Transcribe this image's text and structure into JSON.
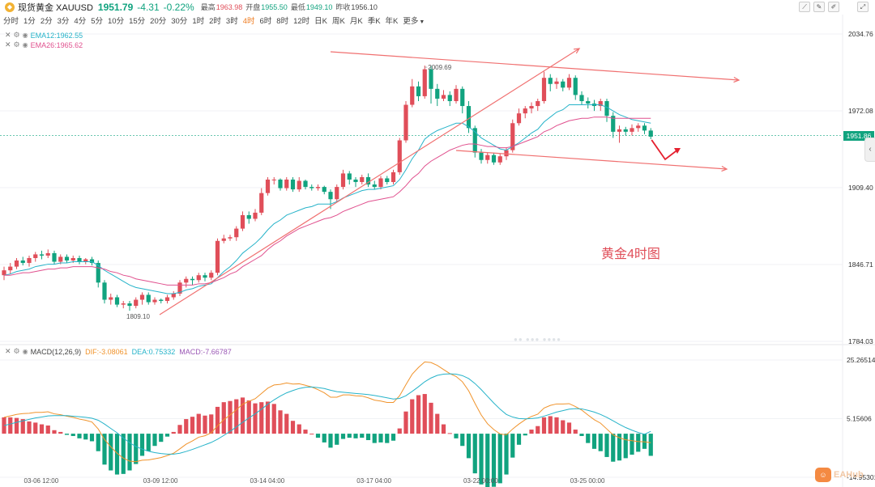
{
  "header": {
    "title": "现货黄金 XAUUSD",
    "price": "1951.79",
    "change": "-4.31",
    "change_pct": "-0.22%",
    "high_label": "最高",
    "high": "1963.98",
    "open_label": "开盘",
    "open": "1955.50",
    "low_label": "最低",
    "low": "1949.10",
    "prev_close_label": "昨收",
    "prev_close": "1956.10"
  },
  "toolbar_icons": [
    "chart-line-icon",
    "pencil-icon",
    "pencil-icon",
    "fullscreen-icon"
  ],
  "periods": [
    "分时",
    "1分",
    "2分",
    "3分",
    "4分",
    "5分",
    "10分",
    "15分",
    "20分",
    "30分",
    "1时",
    "2时",
    "3时",
    "4时",
    "6时",
    "8时",
    "12时",
    "日K",
    "周K",
    "月K",
    "季K",
    "年K",
    "更多"
  ],
  "active_period": "4时",
  "ema_legend": {
    "ema12": "EMA12:1962.55",
    "ema26": "EMA26:1965.62",
    "ema12_color": "#26b3c9",
    "ema26_color": "#e0508e"
  },
  "macd_legend": {
    "name": "MACD(12,26,9)",
    "dif": "DIF:-3.08061",
    "dea": "DEA:0.75332",
    "macd": "MACD:-7.66787",
    "dif_color": "#f0932b",
    "dea_color": "#26b3c9",
    "macd_color": "#9b59b6"
  },
  "annotation": "黄金4时图",
  "current_price_tag": "1951.86",
  "watermark": "EAHub",
  "colors": {
    "up": "#e04e59",
    "down": "#11a37f",
    "channel": "#f07070"
  },
  "chart_data": {
    "type": "candlestick",
    "y_ticks": [
      "2034.76",
      "1972.08",
      "1909.40",
      "1846.71",
      "1784.03"
    ],
    "y_range": [
      1784.03,
      2034.76
    ],
    "x_ticks": [
      "03-06 12:00",
      "03-09 12:00",
      "03-14 04:00",
      "03-17 04:00",
      "03-22 00:00",
      "03-25 00:00"
    ],
    "price_labels": {
      "high": "2009.69",
      "low": "1809.10"
    },
    "candles": [
      [
        1838,
        1842,
        1834,
        1845
      ],
      [
        1842,
        1845,
        1839,
        1848
      ],
      [
        1845,
        1850,
        1843,
        1852
      ],
      [
        1850,
        1848,
        1846,
        1853
      ],
      [
        1848,
        1852,
        1845,
        1854
      ],
      [
        1852,
        1855,
        1849,
        1857
      ],
      [
        1855,
        1854,
        1851,
        1858
      ],
      [
        1854,
        1856,
        1852,
        1859
      ],
      [
        1856,
        1849,
        1847,
        1858
      ],
      [
        1849,
        1853,
        1847,
        1855
      ],
      [
        1853,
        1850,
        1848,
        1855
      ],
      [
        1850,
        1852,
        1848,
        1854
      ],
      [
        1852,
        1849,
        1847,
        1854
      ],
      [
        1849,
        1851,
        1847,
        1852
      ],
      [
        1851,
        1848,
        1846,
        1853
      ],
      [
        1848,
        1832,
        1828,
        1850
      ],
      [
        1832,
        1818,
        1815,
        1834
      ],
      [
        1818,
        1820,
        1814,
        1823
      ],
      [
        1820,
        1814,
        1812,
        1822
      ],
      [
        1814,
        1815,
        1811,
        1817
      ],
      [
        1815,
        1813,
        1809,
        1817
      ],
      [
        1813,
        1818,
        1811,
        1820
      ],
      [
        1818,
        1822,
        1814,
        1824
      ],
      [
        1822,
        1816,
        1814,
        1824
      ],
      [
        1816,
        1818,
        1814,
        1820
      ],
      [
        1818,
        1817,
        1815,
        1819
      ],
      [
        1817,
        1820,
        1815,
        1822
      ],
      [
        1820,
        1823,
        1818,
        1825
      ],
      [
        1823,
        1832,
        1821,
        1834
      ],
      [
        1832,
        1835,
        1828,
        1837
      ],
      [
        1835,
        1834,
        1830,
        1837
      ],
      [
        1834,
        1838,
        1832,
        1840
      ],
      [
        1838,
        1836,
        1833,
        1840
      ],
      [
        1836,
        1840,
        1834,
        1842
      ],
      [
        1840,
        1866,
        1838,
        1868
      ],
      [
        1866,
        1868,
        1864,
        1871
      ],
      [
        1868,
        1869,
        1866,
        1871
      ],
      [
        1869,
        1876,
        1866,
        1878
      ],
      [
        1876,
        1887,
        1874,
        1890
      ],
      [
        1887,
        1884,
        1880,
        1890
      ],
      [
        1884,
        1889,
        1882,
        1892
      ],
      [
        1889,
        1905,
        1887,
        1909
      ],
      [
        1905,
        1916,
        1903,
        1918
      ],
      [
        1916,
        1916,
        1912,
        1918
      ],
      [
        1916,
        1909,
        1907,
        1917
      ],
      [
        1909,
        1916,
        1907,
        1918
      ],
      [
        1916,
        1908,
        1906,
        1918
      ],
      [
        1908,
        1915,
        1906,
        1918
      ],
      [
        1915,
        1910,
        1908,
        1916
      ],
      [
        1910,
        1909,
        1907,
        1912
      ],
      [
        1909,
        1910,
        1907,
        1912
      ],
      [
        1910,
        1906,
        1904,
        1911
      ],
      [
        1906,
        1900,
        1892,
        1908
      ],
      [
        1900,
        1910,
        1898,
        1912
      ],
      [
        1910,
        1921,
        1908,
        1924
      ],
      [
        1921,
        1916,
        1912,
        1923
      ],
      [
        1916,
        1914,
        1910,
        1918
      ],
      [
        1914,
        1918,
        1912,
        1920
      ],
      [
        1918,
        1912,
        1910,
        1921
      ],
      [
        1912,
        1910,
        1908,
        1915
      ],
      [
        1910,
        1917,
        1908,
        1919
      ],
      [
        1917,
        1914,
        1912,
        1919
      ],
      [
        1914,
        1922,
        1912,
        1924
      ],
      [
        1922,
        1948,
        1920,
        1950
      ],
      [
        1948,
        1977,
        1946,
        1980
      ],
      [
        1977,
        1992,
        1975,
        1998
      ],
      [
        1992,
        1984,
        1980,
        1996
      ],
      [
        1984,
        2006,
        1982,
        2009
      ],
      [
        2006,
        1990,
        1978,
        2009
      ],
      [
        1990,
        1982,
        1976,
        1994
      ],
      [
        1982,
        1985,
        1980,
        1989
      ],
      [
        1985,
        1980,
        1976,
        1988
      ],
      [
        1980,
        1990,
        1978,
        1993
      ],
      [
        1990,
        1976,
        1970,
        1992
      ],
      [
        1976,
        1958,
        1954,
        1980
      ],
      [
        1958,
        1938,
        1934,
        1960
      ],
      [
        1938,
        1932,
        1929,
        1941
      ],
      [
        1932,
        1936,
        1929,
        1938
      ],
      [
        1936,
        1930,
        1928,
        1938
      ],
      [
        1930,
        1935,
        1928,
        1937
      ],
      [
        1935,
        1940,
        1932,
        1942
      ],
      [
        1940,
        1962,
        1938,
        1965
      ],
      [
        1962,
        1970,
        1960,
        1974
      ],
      [
        1970,
        1974,
        1966,
        1976
      ],
      [
        1974,
        1976,
        1970,
        1979
      ],
      [
        1976,
        1980,
        1972,
        1982
      ],
      [
        1980,
        1999,
        1978,
        2004
      ],
      [
        1999,
        1994,
        1988,
        2002
      ],
      [
        1994,
        1996,
        1990,
        1999
      ],
      [
        1996,
        1991,
        1988,
        1998
      ],
      [
        1991,
        1999,
        1989,
        2002
      ],
      [
        1999,
        1985,
        1981,
        2001
      ],
      [
        1985,
        1980,
        1977,
        1988
      ],
      [
        1980,
        1978,
        1974,
        1983
      ],
      [
        1978,
        1976,
        1972,
        1981
      ],
      [
        1976,
        1980,
        1972,
        1982
      ],
      [
        1980,
        1968,
        1963,
        1982
      ],
      [
        1968,
        1955,
        1950,
        1971
      ],
      [
        1955,
        1957,
        1946,
        1960
      ],
      [
        1957,
        1955,
        1952,
        1959
      ],
      [
        1955,
        1958,
        1952,
        1961
      ],
      [
        1958,
        1960,
        1955,
        1962
      ],
      [
        1960,
        1956,
        1953,
        1962
      ],
      [
        1956,
        1951,
        1949,
        1958
      ]
    ],
    "ema12": [
      1838,
      1839,
      1841,
      1842,
      1843,
      1845,
      1846,
      1847,
      1847,
      1848,
      1848,
      1849,
      1849,
      1849,
      1849,
      1846,
      1842,
      1839,
      1836,
      1833,
      1830,
      1828,
      1827,
      1826,
      1825,
      1824,
      1823,
      1823,
      1824,
      1826,
      1827,
      1829,
      1830,
      1831,
      1836,
      1841,
      1845,
      1850,
      1856,
      1860,
      1864,
      1869,
      1875,
      1880,
      1883,
      1887,
      1889,
      1891,
      1893,
      1894,
      1896,
      1896,
      1896,
      1898,
      1901,
      1903,
      1905,
      1907,
      1908,
      1908,
      1909,
      1910,
      1911,
      1916,
      1924,
      1933,
      1940,
      1949,
      1953,
      1956,
      1958,
      1960,
      1962,
      1962,
      1959,
      1955,
      1950,
      1947,
      1944,
      1941,
      1940,
      1943,
      1946,
      1950,
      1954,
      1957,
      1963,
      1967,
      1971,
      1973,
      1977,
      1977,
      1977,
      1977,
      1977,
      1977,
      1975,
      1972,
      1969,
      1967,
      1965,
      1964,
      1963,
      1962
    ],
    "ema26": [
      1838,
      1838,
      1839,
      1840,
      1840,
      1841,
      1842,
      1843,
      1843,
      1844,
      1844,
      1845,
      1845,
      1845,
      1845,
      1844,
      1843,
      1841,
      1840,
      1838,
      1837,
      1835,
      1834,
      1833,
      1832,
      1831,
      1830,
      1830,
      1830,
      1830,
      1830,
      1831,
      1831,
      1832,
      1834,
      1836,
      1839,
      1841,
      1845,
      1848,
      1851,
      1854,
      1859,
      1863,
      1866,
      1870,
      1873,
      1876,
      1878,
      1880,
      1882,
      1884,
      1885,
      1887,
      1890,
      1892,
      1894,
      1896,
      1898,
      1899,
      1900,
      1901,
      1902,
      1906,
      1911,
      1917,
      1921,
      1927,
      1931,
      1934,
      1937,
      1940,
      1942,
      1944,
      1945,
      1945,
      1944,
      1943,
      1943,
      1942,
      1942,
      1943,
      1945,
      1947,
      1949,
      1951,
      1955,
      1957,
      1960,
      1962,
      1964,
      1965,
      1966,
      1966,
      1967,
      1967,
      1967,
      1966,
      1966,
      1966,
      1966,
      1966,
      1966,
      1966
    ],
    "macd": {
      "y_ticks": [
        "25.26514",
        "5.15606",
        "-14.95301"
      ],
      "y_range": [
        -14.95301,
        25.26514
      ],
      "dif": [
        5.6,
        6.1,
        6.6,
        6.9,
        7.0,
        7.3,
        7.3,
        7.5,
        6.8,
        6.5,
        6.0,
        5.6,
        5.0,
        4.6,
        4.0,
        1.6,
        -2.0,
        -4.5,
        -6.7,
        -8.4,
        -9.4,
        -9.6,
        -9.1,
        -9.0,
        -8.6,
        -8.2,
        -7.5,
        -6.7,
        -5.2,
        -3.6,
        -2.5,
        -1.2,
        -0.7,
        0.3,
        2.7,
        4.8,
        6.4,
        8.2,
        10.1,
        11.1,
        12.0,
        13.8,
        15.6,
        16.7,
        16.9,
        17.4,
        17.0,
        17.1,
        16.6,
        16.0,
        15.1,
        14.0,
        12.5,
        12.5,
        13.3,
        13.3,
        13.0,
        12.9,
        12.3,
        11.5,
        11.2,
        10.7,
        10.7,
        13.0,
        16.8,
        20.4,
        22.7,
        24.6,
        24.4,
        23.4,
        22.0,
        20.6,
        19.6,
        17.8,
        14.7,
        10.4,
        6.4,
        3.4,
        1.4,
        -0.1,
        -0.4,
        1.6,
        3.3,
        4.8,
        5.9,
        6.7,
        8.8,
        9.7,
        10.2,
        10.2,
        10.3,
        9.3,
        8.1,
        6.4,
        4.8,
        3.6,
        1.6,
        -0.4,
        -1.4,
        -2.1,
        -2.4,
        -2.7,
        -2.8,
        -3.1
      ],
      "dea": [
        2.8,
        3.3,
        3.9,
        4.4,
        4.9,
        5.4,
        5.7,
        6.1,
        6.2,
        6.2,
        6.2,
        6.0,
        5.8,
        5.6,
        5.3,
        4.6,
        3.3,
        1.8,
        0.3,
        -1.5,
        -3.1,
        -4.4,
        -5.3,
        -6.0,
        -6.5,
        -6.8,
        -7.0,
        -7.0,
        -6.7,
        -6.1,
        -5.4,
        -4.6,
        -3.8,
        -3.0,
        -1.9,
        -0.6,
        0.8,
        2.3,
        3.9,
        5.4,
        6.8,
        8.4,
        10.1,
        11.6,
        12.9,
        14.0,
        14.8,
        15.5,
        15.9,
        16.0,
        15.8,
        15.5,
        14.9,
        14.4,
        14.2,
        14.0,
        13.8,
        13.6,
        13.4,
        13.1,
        12.7,
        12.3,
        11.9,
        12.1,
        13.0,
        14.5,
        16.1,
        17.8,
        19.1,
        20.0,
        20.4,
        20.5,
        20.4,
        19.9,
        18.9,
        17.2,
        15.1,
        12.8,
        10.5,
        8.4,
        6.6,
        5.7,
        5.2,
        5.1,
        5.2,
        5.4,
        6.0,
        6.7,
        7.4,
        7.9,
        8.4,
        8.6,
        8.5,
        8.0,
        7.4,
        6.6,
        5.6,
        4.4,
        3.2,
        2.1,
        1.2,
        0.4,
        -0.2,
        0.8
      ],
      "hist": [
        5.6,
        5.6,
        5.4,
        5.0,
        4.2,
        3.8,
        3.2,
        2.8,
        1.2,
        0.6,
        -0.4,
        -0.8,
        -1.6,
        -2.0,
        -2.6,
        -6.0,
        -10.6,
        -12.6,
        -14.0,
        -13.8,
        -12.6,
        -10.4,
        -7.6,
        -6.0,
        -4.2,
        -2.8,
        -1.0,
        0.6,
        3.0,
        5.0,
        5.8,
        6.8,
        6.2,
        6.6,
        9.2,
        10.8,
        11.2,
        11.8,
        12.4,
        11.4,
        10.4,
        10.8,
        11.0,
        10.2,
        8.0,
        6.8,
        4.4,
        3.2,
        1.4,
        0,
        -1.4,
        -3.0,
        -4.8,
        -3.8,
        -1.8,
        -1.4,
        -1.6,
        -1.4,
        -2.2,
        -3.2,
        -3.0,
        -3.2,
        -2.4,
        1.8,
        7.6,
        11.8,
        13.2,
        13.6,
        10.6,
        6.8,
        3.2,
        0.2,
        -1.6,
        -4.2,
        -8.4,
        -13.6,
        -17.4,
        -18.8,
        -18.2,
        -17.0,
        -14.0,
        -8.2,
        -3.8,
        -0.6,
        1.4,
        2.6,
        5.6,
        6.0,
        5.6,
        4.6,
        3.8,
        1.4,
        -0.8,
        -3.2,
        -5.2,
        -6.0,
        -8.0,
        -9.6,
        -9.2,
        -8.4,
        -7.2,
        -6.2,
        -5.2,
        -7.6
      ]
    }
  }
}
